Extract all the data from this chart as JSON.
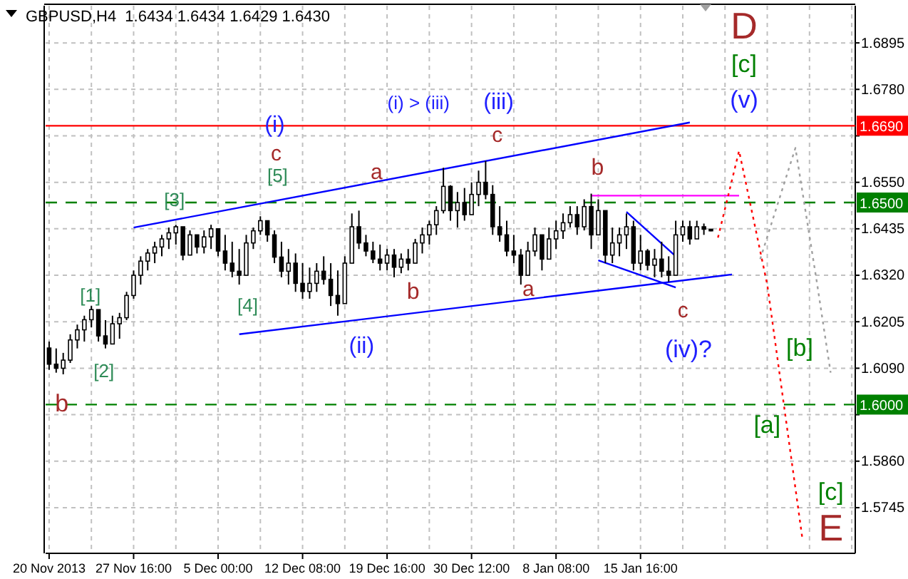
{
  "chart_data": {
    "type": "candlestick",
    "title": "GBPUSD,H4  1.6434 1.6434 1.6429 1.6430",
    "ylim": [
      1.5632,
      1.6987
    ],
    "yticks": [
      1.5745,
      {
        "value": 1.586,
        "label": "1.5860"
      },
      {
        "value": 1.5975,
        "label": null
      },
      {
        "value": 1.609,
        "label": "1.6090"
      },
      1.6205,
      {
        "value": 1.632,
        "label": "1.6320"
      },
      1.6435,
      {
        "value": 1.655,
        "label": "1.6550"
      },
      {
        "value": 1.6665,
        "label": null
      },
      {
        "value": 1.678,
        "label": "1.6780"
      },
      1.6895
    ],
    "grid": true,
    "categories": [
      "20 Nov 2013",
      null,
      null,
      null,
      null,
      null,
      null,
      null,
      null,
      null,
      null,
      null,
      "27 Nov 16:00",
      null,
      null,
      null,
      null,
      null,
      null,
      null,
      null,
      null,
      null,
      null,
      "5 Dec 00:00",
      null,
      null,
      null,
      null,
      null,
      null,
      null,
      null,
      null,
      null,
      null,
      "12 Dec 08:00",
      null,
      null,
      null,
      null,
      null,
      null,
      null,
      null,
      null,
      null,
      null,
      "19 Dec 16:00",
      null,
      null,
      null,
      null,
      null,
      null,
      null,
      null,
      null,
      null,
      null,
      "30 Dec 12:00",
      null,
      null,
      null,
      null,
      null,
      null,
      null,
      null,
      null,
      null,
      null,
      "8 Jan 08:00",
      null,
      null,
      null,
      null,
      null,
      null,
      null,
      null,
      null,
      null,
      null,
      "15 Jan 16:00",
      null,
      null,
      null,
      null,
      null,
      null,
      null,
      null,
      null,
      null,
      null,
      null,
      null,
      null,
      null,
      null,
      null,
      null,
      null,
      null,
      null,
      null,
      null,
      null,
      null,
      null,
      null,
      null,
      null,
      null
    ],
    "ohlc": [
      [
        1.614,
        1.6156,
        1.6086,
        1.61
      ],
      [
        1.61,
        1.6139,
        1.6079,
        1.609
      ],
      [
        1.609,
        1.6128,
        1.6075,
        1.611
      ],
      [
        1.611,
        1.6174,
        1.6103,
        1.616
      ],
      [
        1.616,
        1.6198,
        1.6139,
        1.6185
      ],
      [
        1.6185,
        1.622,
        1.6156,
        1.621
      ],
      [
        1.621,
        1.6244,
        1.6191,
        1.6235
      ],
      [
        1.6235,
        1.6235,
        1.6156,
        1.617
      ],
      [
        1.617,
        1.6209,
        1.6139,
        1.615
      ],
      [
        1.615,
        1.622,
        1.615,
        1.62
      ],
      [
        1.62,
        1.6227,
        1.6163,
        1.6215
      ],
      [
        1.6215,
        1.6279,
        1.6209,
        1.627
      ],
      [
        1.627,
        1.6332,
        1.6262,
        1.632
      ],
      [
        1.632,
        1.6367,
        1.6297,
        1.6355
      ],
      [
        1.6355,
        1.6385,
        1.6332,
        1.6375
      ],
      [
        1.6375,
        1.6403,
        1.635,
        1.639
      ],
      [
        1.639,
        1.642,
        1.6367,
        1.641
      ],
      [
        1.641,
        1.6438,
        1.6385,
        1.6425
      ],
      [
        1.6425,
        1.6445,
        1.6396,
        1.644
      ],
      [
        1.644,
        1.644,
        1.6357,
        1.637
      ],
      [
        1.637,
        1.6431,
        1.637,
        1.642
      ],
      [
        1.642,
        1.642,
        1.6374,
        1.639
      ],
      [
        1.639,
        1.6431,
        1.6374,
        1.6415
      ],
      [
        1.6415,
        1.6445,
        1.6385,
        1.6435
      ],
      [
        1.6435,
        1.6435,
        1.6367,
        1.638
      ],
      [
        1.638,
        1.642,
        1.6332,
        1.635
      ],
      [
        1.635,
        1.6403,
        1.6315,
        1.633
      ],
      [
        1.633,
        1.6385,
        1.6297,
        1.632
      ],
      [
        1.632,
        1.642,
        1.632,
        1.64
      ],
      [
        1.64,
        1.6438,
        1.6385,
        1.643
      ],
      [
        1.643,
        1.6466,
        1.642,
        1.6455
      ],
      [
        1.6455,
        1.6455,
        1.6403,
        1.642
      ],
      [
        1.642,
        1.6431,
        1.635,
        1.6365
      ],
      [
        1.6365,
        1.6403,
        1.6315,
        1.633
      ],
      [
        1.633,
        1.6385,
        1.6297,
        1.635
      ],
      [
        1.635,
        1.6374,
        1.6279,
        1.63
      ],
      [
        1.63,
        1.635,
        1.6262,
        1.628
      ],
      [
        1.628,
        1.6339,
        1.6262,
        1.63
      ],
      [
        1.63,
        1.635,
        1.6279,
        1.633
      ],
      [
        1.633,
        1.6367,
        1.6297,
        1.631
      ],
      [
        1.631,
        1.635,
        1.6244,
        1.627
      ],
      [
        1.627,
        1.6332,
        1.622,
        1.625
      ],
      [
        1.625,
        1.6367,
        1.625,
        1.635
      ],
      [
        1.635,
        1.6473,
        1.635,
        1.644
      ],
      [
        1.644,
        1.648,
        1.6385,
        1.64
      ],
      [
        1.64,
        1.642,
        1.6367,
        1.638
      ],
      [
        1.638,
        1.6403,
        1.635,
        1.636
      ],
      [
        1.636,
        1.6396,
        1.6332,
        1.635
      ],
      [
        1.635,
        1.6385,
        1.6332,
        1.637
      ],
      [
        1.637,
        1.6385,
        1.6315,
        1.634
      ],
      [
        1.634,
        1.6374,
        1.6325,
        1.636
      ],
      [
        1.636,
        1.6385,
        1.6332,
        1.635
      ],
      [
        1.635,
        1.641,
        1.635,
        1.64
      ],
      [
        1.64,
        1.6438,
        1.6374,
        1.642
      ],
      [
        1.642,
        1.6455,
        1.6396,
        1.6445
      ],
      [
        1.6445,
        1.6491,
        1.642,
        1.648
      ],
      [
        1.648,
        1.6586,
        1.6473,
        1.654
      ],
      [
        1.654,
        1.6543,
        1.6455,
        1.648
      ],
      [
        1.648,
        1.6526,
        1.6438,
        1.65
      ],
      [
        1.65,
        1.6536,
        1.6455,
        1.647
      ],
      [
        1.647,
        1.655,
        1.647,
        1.652
      ],
      [
        1.652,
        1.6579,
        1.6491,
        1.655
      ],
      [
        1.655,
        1.6603,
        1.6508,
        1.652
      ],
      [
        1.652,
        1.6543,
        1.642,
        1.644
      ],
      [
        1.644,
        1.6491,
        1.6403,
        1.642
      ],
      [
        1.642,
        1.6455,
        1.6367,
        1.638
      ],
      [
        1.638,
        1.642,
        1.635,
        1.637
      ],
      [
        1.637,
        1.6385,
        1.6297,
        1.632
      ],
      [
        1.632,
        1.6403,
        1.632,
        1.638
      ],
      [
        1.638,
        1.6438,
        1.6367,
        1.642
      ],
      [
        1.642,
        1.642,
        1.6332,
        1.636
      ],
      [
        1.636,
        1.6438,
        1.636,
        1.641
      ],
      [
        1.641,
        1.6455,
        1.6385,
        1.643
      ],
      [
        1.643,
        1.6473,
        1.641,
        1.645
      ],
      [
        1.645,
        1.6491,
        1.6438,
        1.647
      ],
      [
        1.647,
        1.6491,
        1.642,
        1.644
      ],
      [
        1.644,
        1.6508,
        1.6431,
        1.649
      ],
      [
        1.649,
        1.6522,
        1.6385,
        1.642
      ],
      [
        1.642,
        1.6508,
        1.642,
        1.648
      ],
      [
        1.648,
        1.648,
        1.635,
        1.637
      ],
      [
        1.637,
        1.6438,
        1.635,
        1.64
      ],
      [
        1.64,
        1.6438,
        1.6367,
        1.642
      ],
      [
        1.642,
        1.6473,
        1.6385,
        1.644
      ],
      [
        1.644,
        1.6455,
        1.6332,
        1.635
      ],
      [
        1.635,
        1.642,
        1.6332,
        1.638
      ],
      [
        1.638,
        1.6385,
        1.6332,
        1.6345
      ],
      [
        1.6345,
        1.6385,
        1.6315,
        1.636
      ],
      [
        1.636,
        1.6403,
        1.6315,
        1.633
      ],
      [
        1.633,
        1.6367,
        1.6304,
        1.632
      ],
      [
        1.632,
        1.6455,
        1.632,
        1.642
      ],
      [
        1.642,
        1.6455,
        1.6403,
        1.644
      ],
      [
        1.644,
        1.6455,
        1.6396,
        1.641
      ],
      [
        1.641,
        1.6455,
        1.641,
        1.644
      ],
      [
        1.644,
        1.6448,
        1.642,
        1.6434
      ],
      [
        1.6434,
        1.6434,
        1.6429,
        1.643
      ],
      null,
      null,
      null,
      null,
      null,
      null,
      null,
      null,
      null,
      null,
      null,
      null,
      null,
      null,
      null,
      null,
      null,
      null,
      null,
      null
    ],
    "series": [
      {
        "type": "line",
        "color": "#0000ff",
        "line_style": "solid",
        "values": [
          null,
          null,
          null,
          null,
          null,
          null,
          null,
          null,
          null,
          null,
          null,
          null,
          1.6438,
          null,
          null,
          null,
          null,
          null,
          null,
          null,
          null,
          null,
          null,
          null,
          null,
          null,
          null,
          null,
          null,
          null,
          null,
          null,
          null,
          null,
          null,
          null,
          null,
          null,
          null,
          null,
          null,
          null,
          null,
          null,
          null,
          null,
          null,
          null,
          null,
          null,
          null,
          null,
          null,
          null,
          null,
          null,
          null,
          null,
          null,
          null,
          null,
          null,
          null,
          null,
          null,
          null,
          null,
          null,
          null,
          null,
          null,
          null,
          null,
          null,
          null,
          null,
          null,
          null,
          null,
          null,
          null,
          null,
          null,
          null,
          null,
          null,
          null,
          null,
          null,
          null,
          null,
          1.6698,
          null,
          null,
          null,
          null,
          null,
          null,
          null,
          null,
          null,
          null,
          null,
          null,
          null,
          null,
          null,
          null,
          null,
          null,
          null,
          null,
          null,
          null,
          null
        ]
      },
      {
        "type": "line",
        "color": "#0000ff",
        "line_style": "solid",
        "values": [
          null,
          null,
          null,
          null,
          null,
          null,
          null,
          null,
          null,
          null,
          null,
          null,
          null,
          null,
          null,
          null,
          null,
          null,
          null,
          null,
          null,
          null,
          null,
          null,
          null,
          null,
          null,
          1.6174,
          null,
          null,
          null,
          null,
          null,
          null,
          null,
          null,
          null,
          null,
          null,
          null,
          null,
          null,
          null,
          null,
          null,
          null,
          null,
          null,
          null,
          null,
          null,
          null,
          null,
          null,
          null,
          null,
          null,
          null,
          null,
          null,
          null,
          null,
          null,
          null,
          null,
          null,
          null,
          null,
          null,
          null,
          null,
          null,
          null,
          null,
          null,
          null,
          null,
          null,
          null,
          null,
          null,
          null,
          null,
          null,
          null,
          null,
          null,
          null,
          null,
          null,
          null,
          null,
          null,
          null,
          null,
          null,
          null,
          1.6322,
          null,
          null,
          null,
          null,
          null,
          null,
          null,
          null,
          null,
          null,
          null,
          null,
          null,
          null,
          null,
          null,
          null
        ]
      },
      {
        "type": "line",
        "color": "#0000ff",
        "line_style": "solid",
        "values": [
          null,
          null,
          null,
          null,
          null,
          null,
          null,
          null,
          null,
          null,
          null,
          null,
          null,
          null,
          null,
          null,
          null,
          null,
          null,
          null,
          null,
          null,
          null,
          null,
          null,
          null,
          null,
          null,
          null,
          null,
          null,
          null,
          null,
          null,
          null,
          null,
          null,
          null,
          null,
          null,
          null,
          null,
          null,
          null,
          null,
          null,
          null,
          null,
          null,
          null,
          null,
          null,
          null,
          null,
          null,
          null,
          null,
          null,
          null,
          null,
          null,
          null,
          null,
          null,
          null,
          null,
          null,
          null,
          null,
          null,
          null,
          null,
          null,
          null,
          null,
          null,
          null,
          null,
          null,
          null,
          null,
          null,
          1.6477,
          null,
          null,
          null,
          null,
          null,
          null,
          1.6367,
          null,
          null,
          null,
          null,
          null,
          null,
          null,
          null,
          null,
          null,
          null,
          null,
          null,
          null,
          null,
          null,
          null,
          null,
          null,
          null,
          null,
          null,
          null,
          null,
          null
        ]
      },
      {
        "type": "line",
        "color": "#0000ff",
        "line_style": "solid",
        "values": [
          null,
          null,
          null,
          null,
          null,
          null,
          null,
          null,
          null,
          null,
          null,
          null,
          null,
          null,
          null,
          null,
          null,
          null,
          null,
          null,
          null,
          null,
          null,
          null,
          null,
          null,
          null,
          null,
          null,
          null,
          null,
          null,
          null,
          null,
          null,
          null,
          null,
          null,
          null,
          null,
          null,
          null,
          null,
          null,
          null,
          null,
          null,
          null,
          null,
          null,
          null,
          null,
          null,
          null,
          null,
          null,
          null,
          null,
          null,
          null,
          null,
          null,
          null,
          null,
          null,
          null,
          null,
          null,
          null,
          null,
          null,
          null,
          null,
          null,
          null,
          null,
          null,
          null,
          1.6357,
          null,
          null,
          null,
          null,
          null,
          null,
          null,
          null,
          null,
          null,
          1.629,
          null,
          null,
          null,
          null,
          null,
          null,
          null,
          null,
          null,
          null,
          null,
          null,
          null,
          null,
          null,
          null,
          null,
          null,
          null,
          null,
          null,
          null,
          null,
          null,
          null
        ]
      },
      {
        "type": "line",
        "color": "#ff00ff",
        "line_style": "solid",
        "values": [
          null,
          null,
          null,
          null,
          null,
          null,
          null,
          null,
          null,
          null,
          null,
          null,
          null,
          null,
          null,
          null,
          null,
          null,
          null,
          null,
          null,
          null,
          null,
          null,
          null,
          null,
          null,
          null,
          null,
          null,
          null,
          null,
          null,
          null,
          null,
          null,
          null,
          null,
          null,
          null,
          null,
          null,
          null,
          null,
          null,
          null,
          null,
          null,
          null,
          null,
          null,
          null,
          null,
          null,
          null,
          null,
          null,
          null,
          null,
          null,
          null,
          null,
          null,
          null,
          null,
          null,
          null,
          null,
          null,
          null,
          null,
          null,
          null,
          null,
          null,
          null,
          null,
          1.6517,
          null,
          null,
          null,
          null,
          null,
          null,
          null,
          null,
          null,
          null,
          null,
          null,
          null,
          null,
          null,
          null,
          null,
          null,
          null,
          null,
          1.6517,
          null,
          null,
          null,
          null,
          null,
          null,
          null,
          null,
          null,
          null,
          null,
          null,
          null,
          null,
          null,
          null
        ]
      },
      {
        "type": "line",
        "color": "#ff0000",
        "line_style": "dotted",
        "values": [
          null,
          null,
          null,
          null,
          null,
          null,
          null,
          null,
          null,
          null,
          null,
          null,
          null,
          null,
          null,
          null,
          null,
          null,
          null,
          null,
          null,
          null,
          null,
          null,
          null,
          null,
          null,
          null,
          null,
          null,
          null,
          null,
          null,
          null,
          null,
          null,
          null,
          null,
          null,
          null,
          null,
          null,
          null,
          null,
          null,
          null,
          null,
          null,
          null,
          null,
          null,
          null,
          null,
          null,
          null,
          null,
          null,
          null,
          null,
          null,
          null,
          null,
          null,
          null,
          null,
          null,
          null,
          null,
          null,
          null,
          null,
          null,
          null,
          null,
          null,
          null,
          null,
          null,
          null,
          null,
          null,
          null,
          null,
          null,
          null,
          null,
          null,
          null,
          null,
          null,
          null,
          null,
          null,
          null,
          null,
          1.6413,
          null,
          null,
          1.6628,
          null,
          null,
          null,
          1.6297,
          null,
          null,
          null,
          null,
          1.5667,
          null,
          null,
          null,
          null,
          null,
          null,
          null
        ]
      },
      {
        "type": "line",
        "color": "#a0a0a0",
        "line_style": "dotted",
        "values": [
          null,
          null,
          null,
          null,
          null,
          null,
          null,
          null,
          null,
          null,
          null,
          null,
          null,
          null,
          null,
          null,
          null,
          null,
          null,
          null,
          null,
          null,
          null,
          null,
          null,
          null,
          null,
          null,
          null,
          null,
          null,
          null,
          null,
          null,
          null,
          null,
          null,
          null,
          null,
          null,
          null,
          null,
          null,
          null,
          null,
          null,
          null,
          null,
          null,
          null,
          null,
          null,
          null,
          null,
          null,
          null,
          null,
          null,
          null,
          null,
          null,
          null,
          null,
          null,
          null,
          null,
          null,
          null,
          null,
          null,
          null,
          null,
          null,
          null,
          null,
          null,
          null,
          null,
          null,
          null,
          null,
          null,
          null,
          null,
          null,
          null,
          null,
          null,
          null,
          null,
          null,
          null,
          null,
          null,
          null,
          null,
          null,
          null,
          null,
          null,
          null,
          1.636,
          null,
          null,
          null,
          null,
          1.6635,
          null,
          null,
          1.6308,
          null,
          1.6079,
          null,
          null,
          null
        ]
      }
    ],
    "ref_lines": [
      {
        "axis": "y",
        "value": 1.669,
        "label": "1.6690",
        "color": "#ff0000",
        "line_style": "solid"
      },
      {
        "axis": "y",
        "value": 1.65,
        "label": "1.6500",
        "color": "#008000",
        "line_style": "dashed"
      },
      {
        "axis": "y",
        "value": 1.6,
        "label": "1.6000",
        "color": "#008000",
        "line_style": "dashed"
      }
    ],
    "annotations": [
      "(i)",
      "c",
      "[5]",
      "[3]",
      "a",
      "(i) > (iii)",
      "(iii)",
      "c",
      "b",
      "D",
      "[c]",
      "(v)",
      "[1]",
      "[2]",
      "[4]",
      "b",
      "(ii)",
      "a",
      "c",
      "(iv)?",
      "[b]",
      "b",
      "[a]",
      "[c]",
      "E"
    ]
  }
}
